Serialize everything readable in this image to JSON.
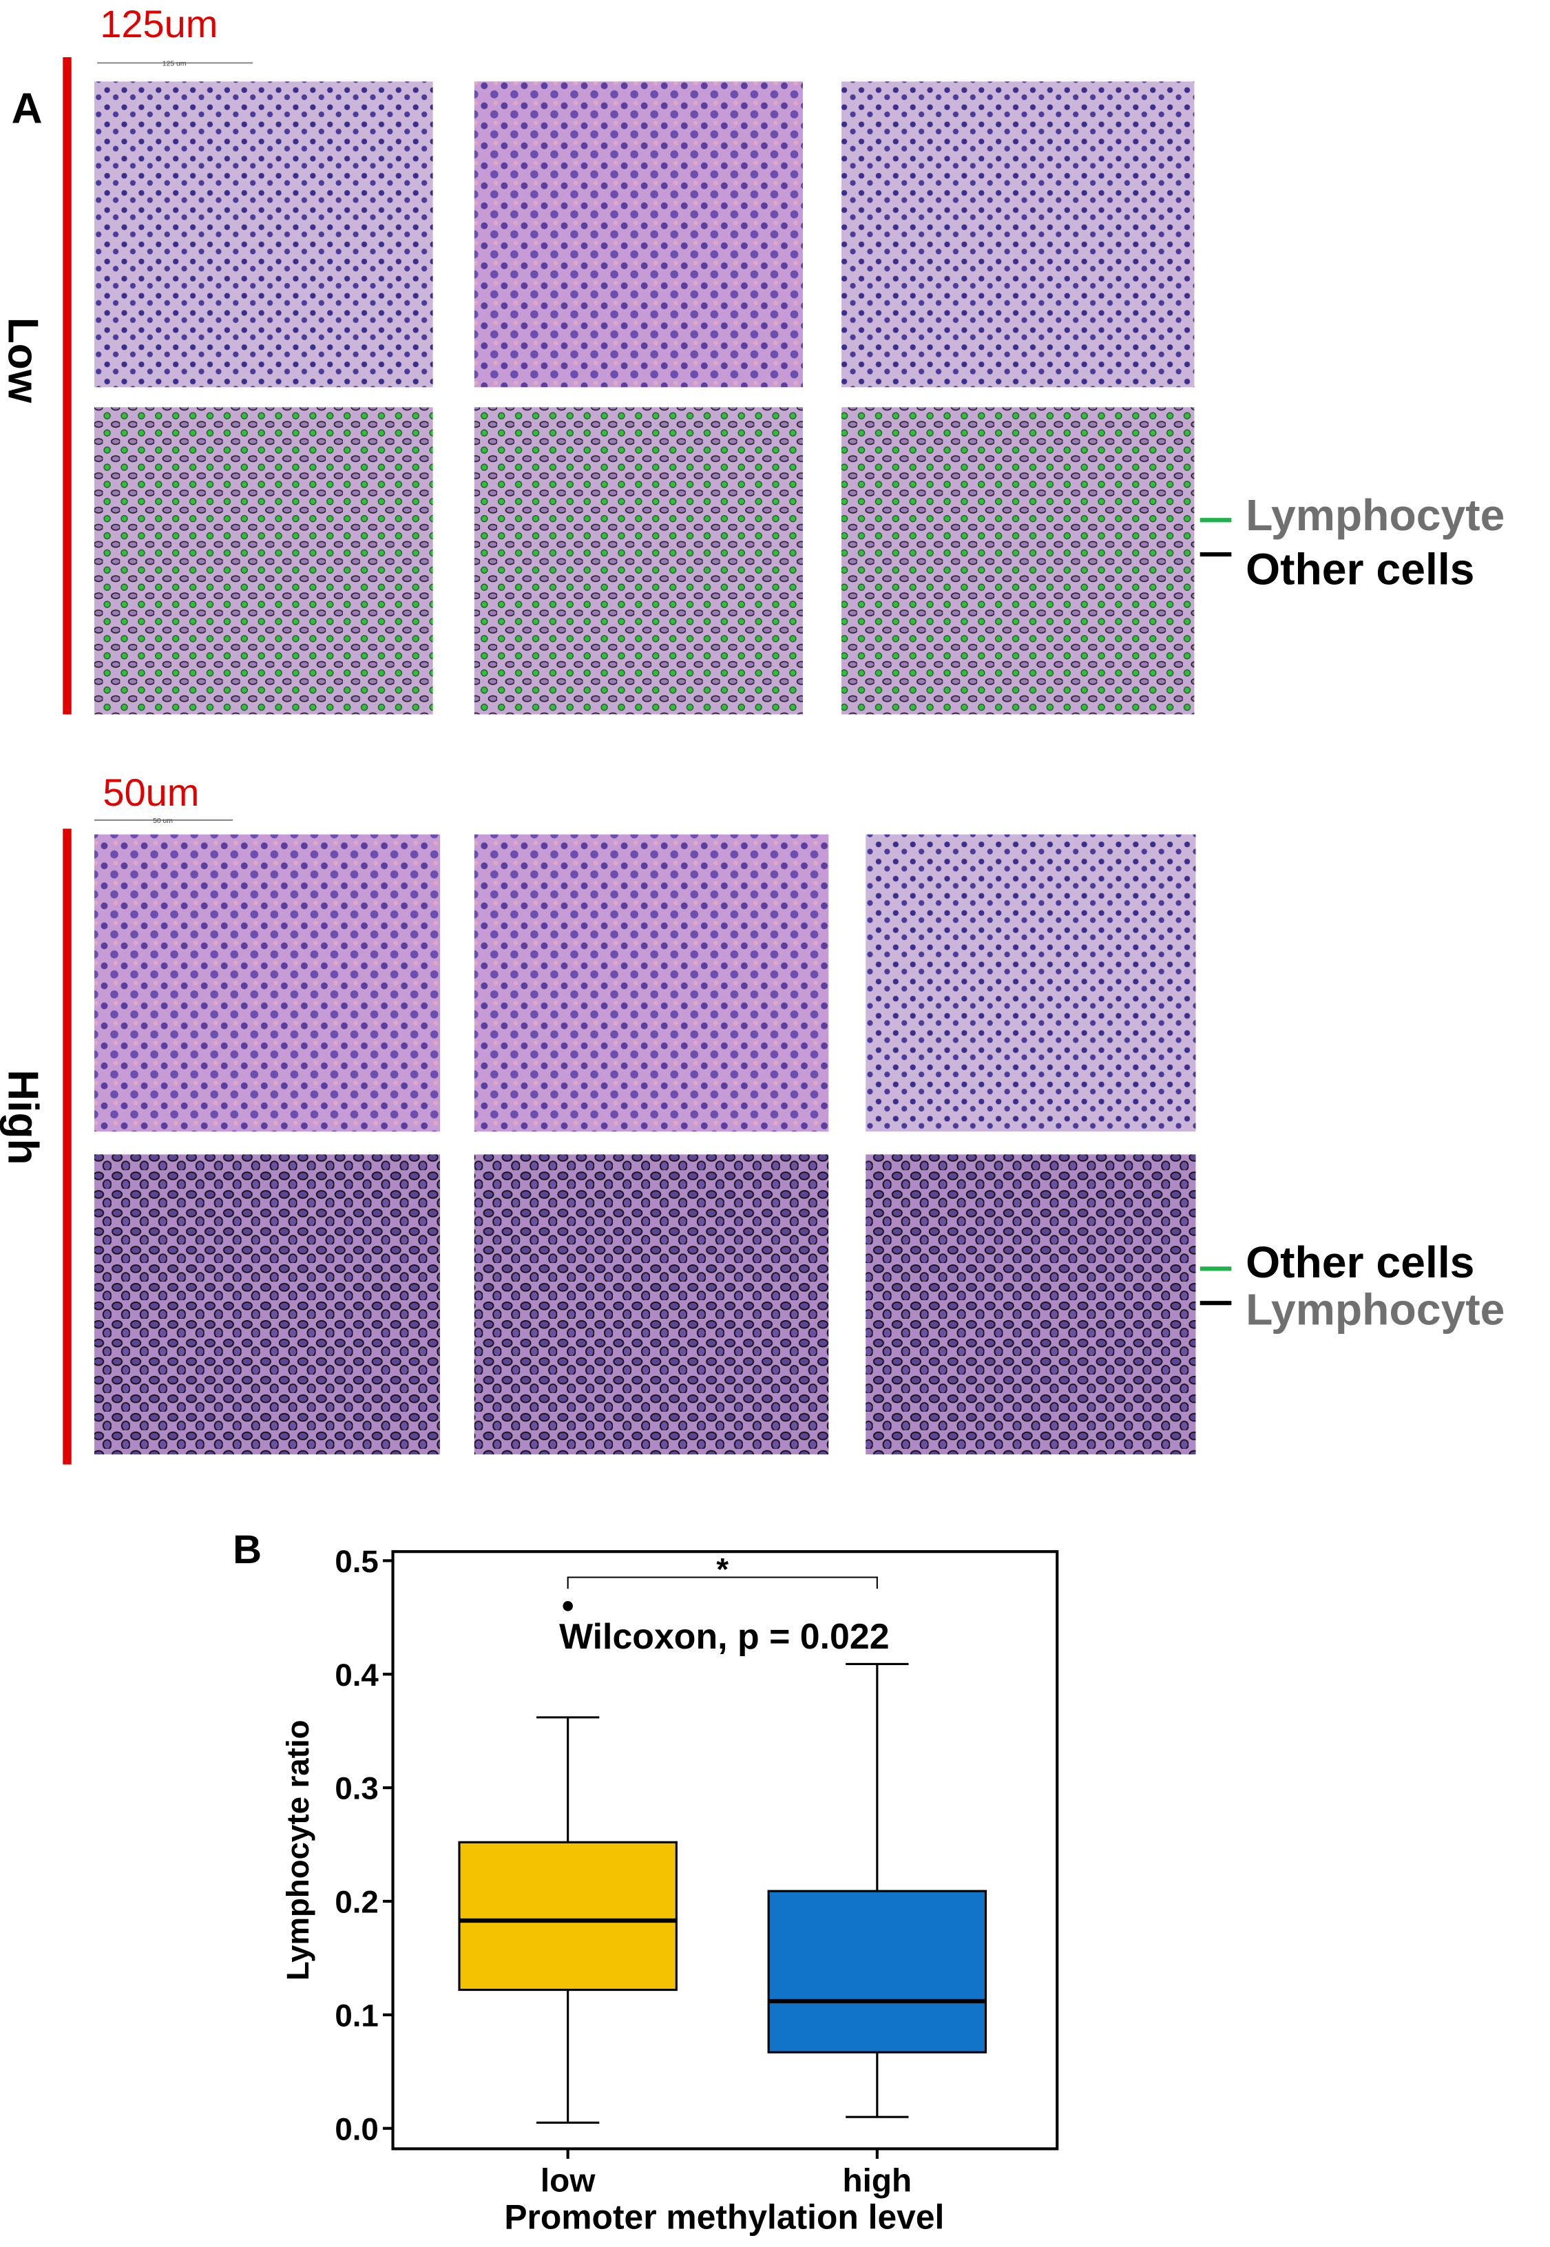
{
  "panel_a": {
    "label": "A",
    "groups": [
      {
        "scale_label": "125um",
        "scale_bar_text": "125 um",
        "row_label": "Low",
        "legend": [
          "Lymphocyte",
          "Other cells"
        ]
      },
      {
        "scale_label": "50um",
        "scale_bar_text": "50 um",
        "row_label": "High",
        "legend": [
          "Other cells",
          "Lymphocyte"
        ]
      }
    ]
  },
  "chart_data": {
    "type": "box",
    "panel_label": "B",
    "annotation": "Wilcoxon, p = 0.022",
    "significance": "*",
    "categories": [
      "low",
      "high"
    ],
    "boxes": [
      {
        "min": 0.005,
        "q1": 0.122,
        "median": 0.183,
        "q3": 0.252,
        "max": 0.362,
        "outliers": [
          0.46
        ],
        "color": "#f5c200"
      },
      {
        "min": 0.01,
        "q1": 0.067,
        "median": 0.112,
        "q3": 0.209,
        "max": 0.409,
        "outliers": [],
        "color": "#1174c8"
      }
    ],
    "x_label": "Promoter methylation level",
    "y_label": "Lymphocyte ratio",
    "ylim": [
      -0.018,
      0.508
    ],
    "yticks": [
      {
        "value": 0,
        "label": "0.0"
      },
      0.1,
      0.2,
      0.3,
      0.4,
      0.5
    ]
  }
}
